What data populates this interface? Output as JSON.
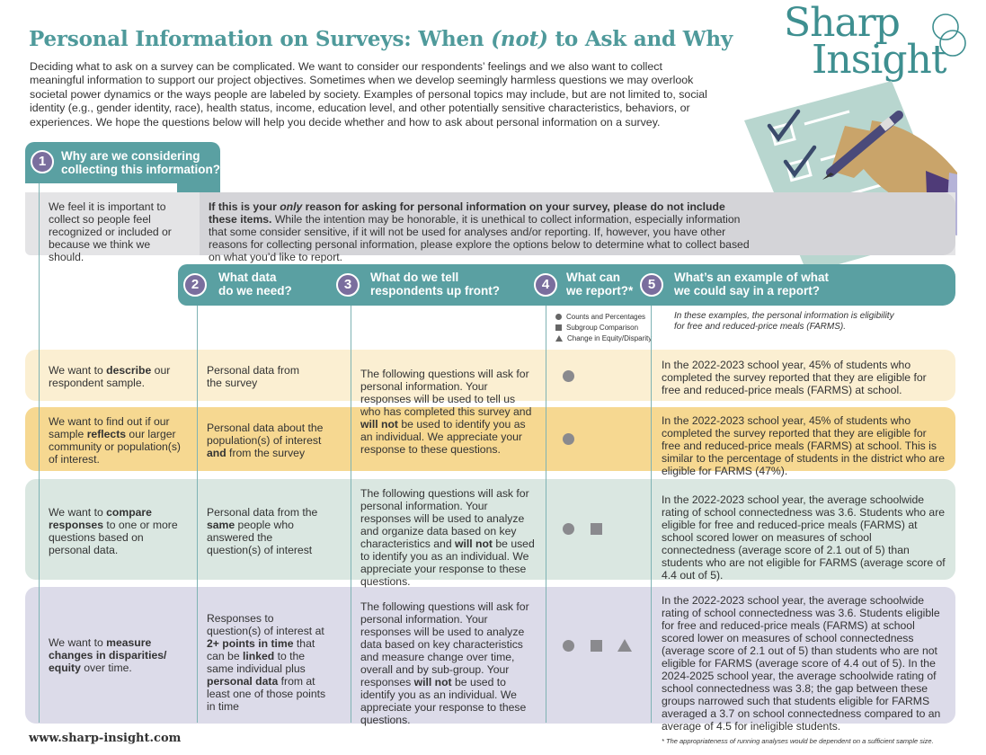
{
  "header": {
    "title_a": "Personal Information on Surveys: When ",
    "title_not": "(not)",
    "title_b": " to Ask and Why",
    "intro": "Deciding what to ask on a survey can be complicated. We want to consider our respondents’ feelings and we also want to collect meaningful information to support our project objectives. Sometimes when we develop seemingly harmless questions we may overlook societal power dynamics or the ways people are labeled by society. Examples of personal topics may include, but are not limited to, social identity (e.g., gender identity, race), health status, income, education level, and other potentially sensitive characteristics, behaviors, or experiences. We hope the questions below will help you decide whether and how to ask about personal information on a survey."
  },
  "logo": {
    "line1": "Sharp",
    "line2": "Insight"
  },
  "steps": {
    "s1": {
      "num": "1",
      "line1": "Why are we considering",
      "line2": "collecting this information?"
    },
    "s2": {
      "num": "2",
      "line1": "What data",
      "line2": "do we need?"
    },
    "s3": {
      "num": "3",
      "line1": "What do we tell",
      "line2": "respondents up front?"
    },
    "s4": {
      "num": "4",
      "line1": "What can",
      "line2": "we report?*"
    },
    "s5": {
      "num": "5",
      "line1": "What’s an example of what",
      "line2": "we could say in a report?"
    }
  },
  "gray_row": {
    "reason": "We feel it is important to collect so people feel recognized or included or because we think we should.",
    "bold_a": "If this is your ",
    "bold_only": "only",
    "bold_b": " reason for asking for personal information on your survey, please do not include these items.",
    "rest": "While the intention may be honorable, it is unethical to collect information, especially information that some consider sensitive, if it will not be used for analyses and/or reporting. If, however, you have other reasons for collecting personal information, please explore the options below to determine what to collect based on what you’d like to report."
  },
  "legend": {
    "counts": "Counts and Percentages",
    "subgroup": "Subgroup Comparison",
    "change": "Change in Equity/Disparity",
    "example_note": "In these examples, the personal information is eligibility for free and reduced-price meals (FARMS)."
  },
  "rows": {
    "describe": {
      "why_a": "We want to ",
      "why_b": "describe",
      "why_c": " our respondent sample.",
      "data": "Personal data from the survey",
      "example": "In the 2022-2023 school year, 45% of students who completed the survey reported that they are eligible for free and reduced-price meals (FARMS) at school."
    },
    "reflect": {
      "why_a": "We want to find out if our sample ",
      "why_b": "reflects",
      "why_c": " our larger community or population(s) of interest.",
      "data_a": "Personal data about the population(s) of interest ",
      "data_b": "and",
      "data_c": " from the survey",
      "example": "In the 2022-2023 school year, 45% of students who completed the survey reported that they are eligible for free and reduced-price meals (FARMS) at school. This is similar to the percentage of students in the district who are eligible for FARMS (47%)."
    },
    "tell_1": {
      "a": "The following questions will ask for personal information. Your responses will be used to tell us who has completed this survey and ",
      "b": "will not",
      "c": " be used to identify you as an individual. We appreciate your response to these questions."
    },
    "compare": {
      "why_a": "We want to ",
      "why_b": "compare responses",
      "why_c": " to one or more questions based on personal data.",
      "data_a": "Personal data from the ",
      "data_b": "same",
      "data_c": " people who answered the question(s) of interest",
      "tell_a": "The following questions will ask for personal information. Your responses will be used to analyze and organize data based on key characteristics and ",
      "tell_b": "will not",
      "tell_c": " be used to identify you as an individual. We appreciate your response to these questions.",
      "example": "In the 2022-2023 school year, the average schoolwide rating of school connectedness was 3.6. Students who are eligible for free and reduced-price meals (FARMS) at school scored lower on measures of school connectedness (average score of 2.1 out of 5) than students who are not eligible for FARMS (average score of 4.4 out of 5)."
    },
    "measure": {
      "why_a": "We want to ",
      "why_b": "measure changes in disparities/ equity",
      "why_c": " over time.",
      "data_a": "Responses to question(s) of interest at ",
      "data_b": "2+ points in time",
      "data_c": " that can be ",
      "data_d": "linked",
      "data_e": " to the same individual plus ",
      "data_f": "personal data",
      "data_g": " from at least one of those points in time",
      "tell_a": "The following questions will ask for personal information. Your responses will be used to analyze data based on key characteristics and measure change over time, overall and by sub-group. Your responses ",
      "tell_b": "will not",
      "tell_c": " be used to identify you as an individual. We appreciate your response to these questions.",
      "example": "In the 2022-2023 school year, the average schoolwide rating of school connectedness was 3.6. Students eligible for free and reduced-price meals (FARMS) at school scored lower on measures of school connectedness (average score of 2.1 out of 5) than students who are not eligible for FARMS (average score of 4.4 out of 5). In the 2024-2025 school year, the average schoolwide rating of school connectedness was 3.8; the gap between these groups narrowed such that students eligible for FARMS averaged a 3.7 on school connectedness compared to an average of 4.5 for ineligible students."
    }
  },
  "footer": {
    "url": "www.sharp-insight.com",
    "footnote": "* The appropriateness of running analyses would be dependent on a sufficient sample size."
  }
}
